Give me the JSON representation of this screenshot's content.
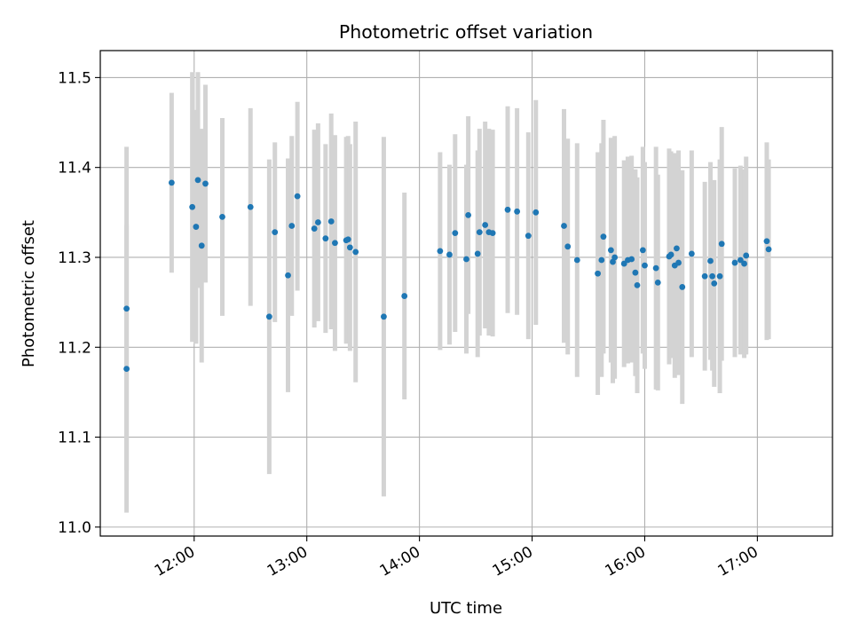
{
  "colors": {
    "point": "#1f77b4",
    "errorbar": "#d3d3d3",
    "grid": "#b0b0b0",
    "axis": "#000000"
  },
  "chart_data": {
    "type": "scatter",
    "title": "Photometric offset variation",
    "xlabel": "UTC time",
    "ylabel": "Photometric offset",
    "grid": true,
    "xlim": [
      "11:10",
      "17:40"
    ],
    "ylim": [
      10.99,
      11.53
    ],
    "x_ticks": [
      "12:00",
      "13:00",
      "14:00",
      "15:00",
      "16:00",
      "17:00"
    ],
    "y_ticks": [
      "11.0",
      "11.1",
      "11.2",
      "11.3",
      "11.4",
      "11.5"
    ],
    "series": [
      {
        "x": [
          "11:24",
          "11:24",
          "11:48",
          "11:59",
          "12:01",
          "12:02",
          "12:04",
          "12:06",
          "12:15",
          "12:30",
          "12:40",
          "12:43",
          "12:50",
          "12:52",
          "12:55",
          "13:04",
          "13:06",
          "13:10",
          "13:13",
          "13:15",
          "13:21",
          "13:22",
          "13:23",
          "13:26",
          "13:41",
          "13:52",
          "14:11",
          "14:16",
          "14:19",
          "14:25",
          "14:26",
          "14:31",
          "14:32",
          "14:35",
          "14:37",
          "14:39",
          "14:47",
          "14:52",
          "14:58",
          "15:02",
          "15:17",
          "15:19",
          "15:24",
          "15:35",
          "15:37",
          "15:38",
          "15:42",
          "15:43",
          "15:44",
          "15:49",
          "15:51",
          "15:53",
          "15:55",
          "15:56",
          "15:59",
          "16:00",
          "16:06",
          "16:07",
          "16:13",
          "16:14",
          "16:16",
          "16:17",
          "16:18",
          "16:20",
          "16:25",
          "16:32",
          "16:35",
          "16:36",
          "16:37",
          "16:40",
          "16:41",
          "16:48",
          "16:51",
          "16:53",
          "16:54",
          "17:05",
          "17:06"
        ],
        "y": [
          11.176,
          11.243,
          11.383,
          11.356,
          11.334,
          11.386,
          11.313,
          11.382,
          11.345,
          11.356,
          11.234,
          11.328,
          11.28,
          11.335,
          11.368,
          11.332,
          11.339,
          11.321,
          11.34,
          11.316,
          11.319,
          11.32,
          11.311,
          11.306,
          11.234,
          11.257,
          11.307,
          11.303,
          11.327,
          11.298,
          11.347,
          11.304,
          11.328,
          11.336,
          11.328,
          11.327,
          11.353,
          11.351,
          11.324,
          11.35,
          11.335,
          11.312,
          11.297,
          11.282,
          11.297,
          11.323,
          11.308,
          11.295,
          11.3,
          11.293,
          11.297,
          11.298,
          11.283,
          11.269,
          11.308,
          11.291,
          11.288,
          11.272,
          11.301,
          11.303,
          11.291,
          11.31,
          11.294,
          11.267,
          11.304,
          11.279,
          11.296,
          11.279,
          11.271,
          11.279,
          11.315,
          11.294,
          11.297,
          11.293,
          11.302,
          11.318,
          11.309
        ],
        "yerr": [
          0.16,
          0.18,
          0.1,
          0.15,
          0.13,
          0.12,
          0.13,
          0.11,
          0.11,
          0.11,
          0.175,
          0.1,
          0.13,
          0.1,
          0.105,
          0.11,
          0.11,
          0.105,
          0.12,
          0.12,
          0.115,
          0.115,
          0.115,
          0.145,
          0.2,
          0.115,
          0.11,
          0.1,
          0.11,
          0.105,
          0.11,
          0.115,
          0.115,
          0.115,
          0.115,
          0.115,
          0.115,
          0.115,
          0.115,
          0.125,
          0.13,
          0.12,
          0.13,
          0.135,
          0.13,
          0.13,
          0.125,
          0.135,
          0.135,
          0.115,
          0.115,
          0.115,
          0.115,
          0.12,
          0.115,
          0.115,
          0.135,
          0.12,
          0.12,
          0.115,
          0.125,
          0.105,
          0.125,
          0.13,
          0.115,
          0.105,
          0.11,
          0.105,
          0.115,
          0.13,
          0.13,
          0.105,
          0.105,
          0.105,
          0.11,
          0.11,
          0.1
        ]
      }
    ]
  }
}
